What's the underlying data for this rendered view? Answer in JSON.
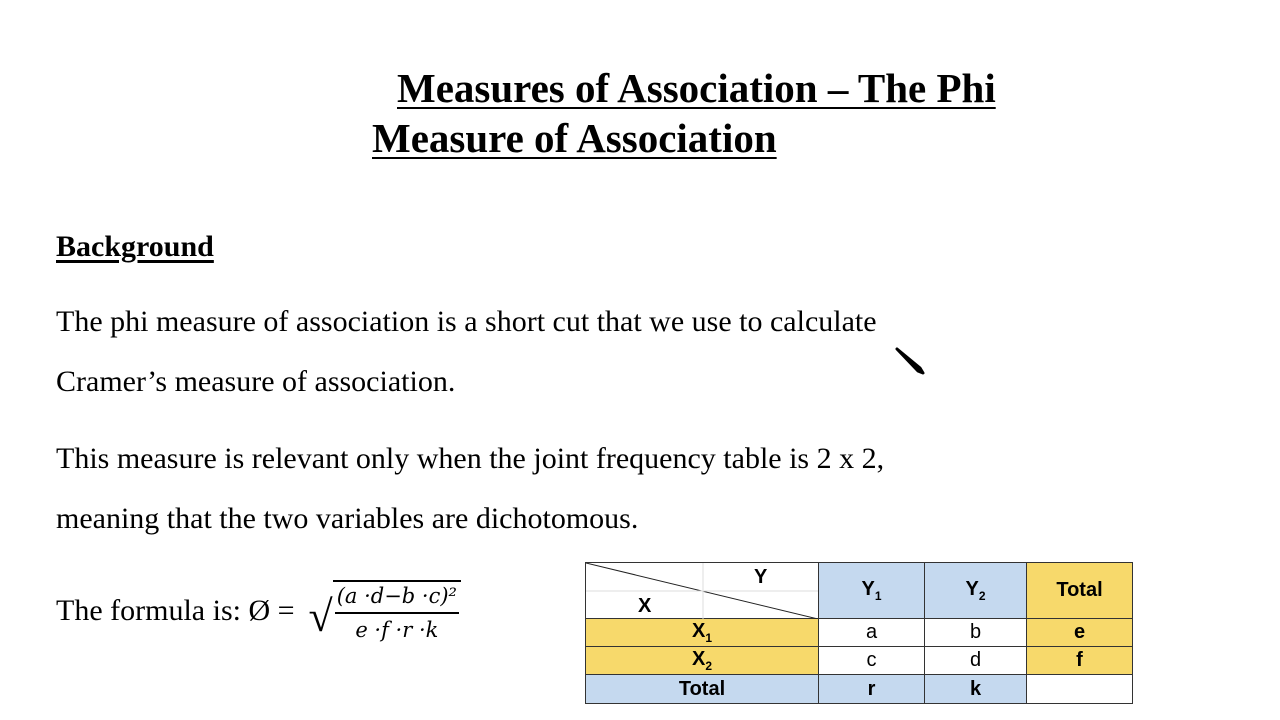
{
  "title": {
    "line1": "Measures of Association – The Phi",
    "line2": "Measure of Association"
  },
  "heading": "Background",
  "paragraphs": [
    {
      "line1": "The phi measure of association is a short cut that we use to calculate",
      "line2": "Cramer’s measure of association."
    },
    {
      "line1": "This measure is relevant only when the joint frequency table is 2 x 2,",
      "line2": "meaning that the two variables are dichotomous."
    }
  ],
  "formula": {
    "label": "The formula is: Ø =",
    "numerator": "(a ·d−b ·c)²",
    "denominator": "e ·f ·r ·k"
  },
  "table": {
    "corner_y": "Y",
    "corner_x": "X",
    "col_headers": [
      {
        "main": "Y",
        "sub": "1"
      },
      {
        "main": "Y",
        "sub": "2"
      },
      {
        "main": "Total",
        "sub": ""
      }
    ],
    "rows": [
      {
        "label": "X",
        "sub": "1",
        "cells": [
          "a",
          "b"
        ],
        "total": "e"
      },
      {
        "label": "X",
        "sub": "2",
        "cells": [
          "c",
          "d"
        ],
        "total": "f"
      }
    ],
    "total_row": {
      "label": "Total",
      "cells": [
        "r",
        "k"
      ],
      "total": ""
    },
    "colors": {
      "blue": "#c5d9ef",
      "yellow": "#f7d96b"
    }
  },
  "cursor_icon": "mouse-pointer-icon"
}
